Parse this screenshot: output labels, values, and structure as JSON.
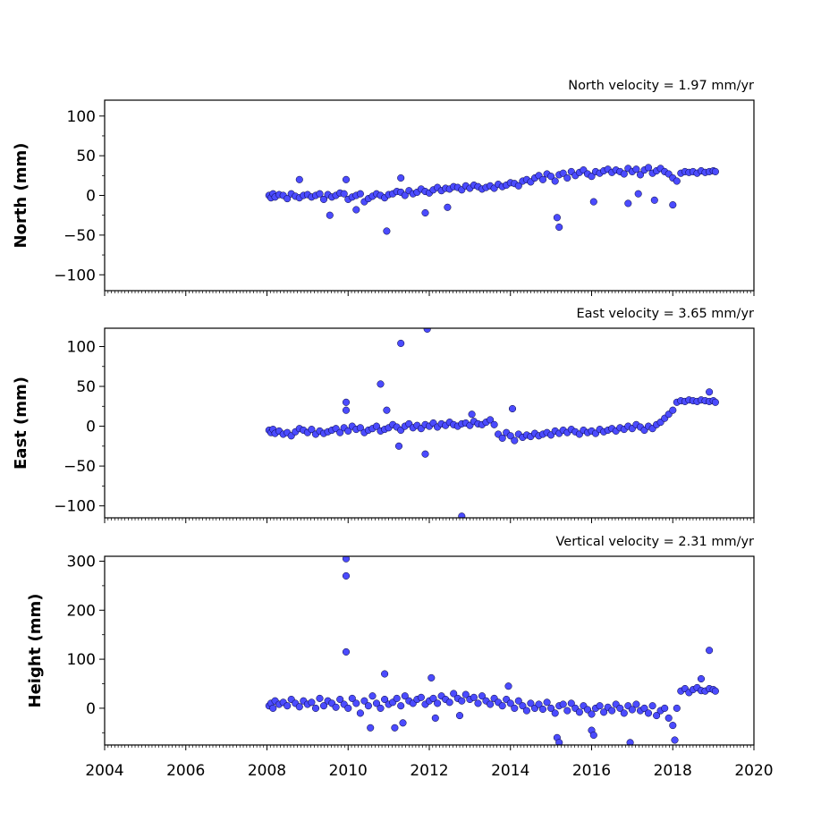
{
  "x_ticks": [
    "2004",
    "2006",
    "2008",
    "2010",
    "2012",
    "2014",
    "2016",
    "2018",
    "2020"
  ],
  "marker_fill": "#4b4bff",
  "marker_edge": "#000033",
  "chart_data": [
    {
      "type": "scatter",
      "title": "North velocity = 1.97 mm/yr",
      "ylabel": "North (mm)",
      "xlabel": "",
      "xlim": [
        2004,
        2020
      ],
      "ylim": [
        -120,
        120
      ],
      "yticks": [
        "100",
        "50",
        "0",
        "−50",
        "−100"
      ],
      "ytick_values": [
        100,
        50,
        0,
        -50,
        -100
      ],
      "grid": false,
      "series": [
        {
          "x": [
            2008.05,
            2008.1,
            2008.15,
            2008.2,
            2008.3,
            2008.4,
            2008.5,
            2008.6,
            2008.7,
            2008.8,
            2008.9,
            2009.0,
            2009.1,
            2009.2,
            2009.3,
            2009.4,
            2009.5,
            2009.6,
            2009.7,
            2009.8,
            2009.9,
            2010.0,
            2010.1,
            2010.2,
            2010.3,
            2010.4,
            2010.5,
            2010.6,
            2010.7,
            2010.8,
            2010.9,
            2011.0,
            2011.1,
            2011.2,
            2011.3,
            2011.4,
            2011.5,
            2011.6,
            2011.7,
            2011.8,
            2011.9,
            2012.0,
            2012.1,
            2012.2,
            2012.3,
            2012.4,
            2012.5,
            2012.6,
            2012.7,
            2012.8,
            2012.9,
            2013.0,
            2013.1,
            2013.2,
            2013.3,
            2013.4,
            2013.5,
            2013.6,
            2013.7,
            2013.8,
            2013.9,
            2014.0,
            2014.1,
            2014.2,
            2014.3,
            2014.4,
            2014.5,
            2014.6,
            2014.7,
            2014.8,
            2014.9,
            2015.0,
            2015.1,
            2015.2,
            2015.3,
            2015.4,
            2015.5,
            2015.6,
            2015.7,
            2015.8,
            2015.9,
            2016.0,
            2016.1,
            2016.2,
            2016.3,
            2016.4,
            2016.5,
            2016.6,
            2016.7,
            2016.8,
            2016.9,
            2017.0,
            2017.1,
            2017.2,
            2017.3,
            2017.4,
            2017.5,
            2017.6,
            2017.7,
            2017.8,
            2017.9,
            2018.0,
            2018.1,
            2018.2,
            2018.3,
            2018.4,
            2018.5,
            2018.6,
            2018.7,
            2018.8,
            2018.9,
            2019.0,
            2019.05,
            2008.8,
            2009.55,
            2009.95,
            2010.2,
            2010.95,
            2011.3,
            2011.9,
            2012.45,
            2015.15,
            2015.2,
            2016.05,
            2016.9,
            2017.15,
            2017.55,
            2018.0
          ],
          "y": [
            0,
            -3,
            2,
            -2,
            1,
            0,
            -4,
            2,
            -1,
            -3,
            0,
            1,
            -2,
            0,
            2,
            -5,
            1,
            -2,
            0,
            3,
            2,
            -5,
            -2,
            0,
            2,
            -8,
            -4,
            -1,
            2,
            0,
            -3,
            1,
            2,
            5,
            4,
            0,
            6,
            2,
            4,
            8,
            5,
            3,
            7,
            10,
            6,
            9,
            8,
            11,
            10,
            7,
            12,
            9,
            13,
            11,
            8,
            10,
            12,
            9,
            14,
            11,
            13,
            16,
            15,
            12,
            18,
            20,
            17,
            22,
            25,
            20,
            27,
            24,
            18,
            26,
            28,
            22,
            30,
            25,
            29,
            32,
            27,
            24,
            30,
            28,
            31,
            33,
            29,
            32,
            30,
            27,
            34,
            30,
            33,
            26,
            32,
            35,
            28,
            31,
            34,
            30,
            27,
            22,
            18,
            28,
            30,
            29,
            30,
            28,
            31,
            29,
            30,
            31,
            30,
            20,
            -25,
            20,
            -18,
            -45,
            22,
            -22,
            -15,
            -28,
            -40,
            -8,
            -10,
            2,
            -6,
            -12
          ]
        }
      ]
    },
    {
      "type": "scatter",
      "title": "East velocity = 3.65 mm/yr",
      "ylabel": "East (mm)",
      "xlabel": "",
      "xlim": [
        2004,
        2020
      ],
      "ylim": [
        -115,
        123
      ],
      "yticks": [
        "100",
        "50",
        "0",
        "−50",
        "−100"
      ],
      "ytick_values": [
        100,
        50,
        0,
        -50,
        -100
      ],
      "grid": false,
      "series": [
        {
          "x": [
            2008.05,
            2008.1,
            2008.15,
            2008.2,
            2008.3,
            2008.4,
            2008.5,
            2008.6,
            2008.7,
            2008.8,
            2008.9,
            2009.0,
            2009.1,
            2009.2,
            2009.3,
            2009.4,
            2009.5,
            2009.6,
            2009.7,
            2009.8,
            2009.9,
            2010.0,
            2010.1,
            2010.2,
            2010.3,
            2010.4,
            2010.5,
            2010.6,
            2010.7,
            2010.8,
            2010.9,
            2011.0,
            2011.1,
            2011.2,
            2011.3,
            2011.4,
            2011.5,
            2011.6,
            2011.7,
            2011.8,
            2011.9,
            2012.0,
            2012.1,
            2012.2,
            2012.3,
            2012.4,
            2012.5,
            2012.6,
            2012.7,
            2012.8,
            2012.9,
            2013.0,
            2013.1,
            2013.2,
            2013.3,
            2013.4,
            2013.5,
            2013.6,
            2013.7,
            2013.8,
            2013.9,
            2014.0,
            2014.1,
            2014.2,
            2014.3,
            2014.4,
            2014.5,
            2014.6,
            2014.7,
            2014.8,
            2014.9,
            2015.0,
            2015.1,
            2015.2,
            2015.3,
            2015.4,
            2015.5,
            2015.6,
            2015.7,
            2015.8,
            2015.9,
            2016.0,
            2016.1,
            2016.2,
            2016.3,
            2016.4,
            2016.5,
            2016.6,
            2016.7,
            2016.8,
            2016.9,
            2017.0,
            2017.1,
            2017.2,
            2017.3,
            2017.4,
            2017.5,
            2017.6,
            2017.7,
            2017.8,
            2017.9,
            2018.0,
            2018.1,
            2018.2,
            2018.3,
            2018.4,
            2018.5,
            2018.6,
            2018.7,
            2018.8,
            2018.9,
            2019.0,
            2019.05,
            2009.95,
            2009.95,
            2010.8,
            2010.95,
            2011.3,
            2011.9,
            2011.95,
            2012.8,
            2013.05,
            2014.05,
            2018.9,
            2011.25
          ],
          "y": [
            -5,
            -8,
            -4,
            -9,
            -6,
            -10,
            -8,
            -12,
            -7,
            -3,
            -5,
            -8,
            -4,
            -10,
            -6,
            -9,
            -7,
            -5,
            -3,
            -8,
            -2,
            -6,
            0,
            -4,
            -2,
            -8,
            -5,
            -3,
            0,
            -6,
            -4,
            -2,
            2,
            -1,
            -5,
            0,
            3,
            -2,
            1,
            -3,
            2,
            0,
            4,
            -1,
            3,
            1,
            5,
            2,
            0,
            3,
            4,
            1,
            6,
            3,
            2,
            5,
            8,
            2,
            -10,
            -15,
            -8,
            -12,
            -18,
            -10,
            -14,
            -11,
            -13,
            -9,
            -12,
            -10,
            -8,
            -11,
            -6,
            -9,
            -5,
            -8,
            -4,
            -7,
            -10,
            -5,
            -8,
            -6,
            -9,
            -4,
            -7,
            -5,
            -3,
            -6,
            -2,
            -4,
            0,
            -3,
            2,
            -1,
            -5,
            0,
            -3,
            2,
            5,
            10,
            15,
            20,
            30,
            32,
            31,
            33,
            32,
            31,
            33,
            32,
            31,
            32,
            30,
            30,
            20,
            53,
            20,
            104,
            -35,
            122,
            -113,
            15,
            22,
            43,
            -25
          ]
        }
      ]
    },
    {
      "type": "scatter",
      "title": "Vertical velocity = 2.31 mm/yr",
      "ylabel": "Height (mm)",
      "xlabel": "",
      "xlim": [
        2004,
        2020
      ],
      "ylim": [
        -75,
        310
      ],
      "yticks": [
        "300",
        "200",
        "100",
        "0"
      ],
      "ytick_values": [
        300,
        200,
        100,
        0
      ],
      "grid": false,
      "series": [
        {
          "x": [
            2008.05,
            2008.1,
            2008.15,
            2008.2,
            2008.3,
            2008.4,
            2008.5,
            2008.6,
            2008.7,
            2008.8,
            2008.9,
            2009.0,
            2009.1,
            2009.2,
            2009.3,
            2009.4,
            2009.5,
            2009.6,
            2009.7,
            2009.8,
            2009.9,
            2010.0,
            2010.1,
            2010.2,
            2010.3,
            2010.4,
            2010.5,
            2010.6,
            2010.7,
            2010.8,
            2010.9,
            2011.0,
            2011.1,
            2011.2,
            2011.3,
            2011.4,
            2011.5,
            2011.6,
            2011.7,
            2011.8,
            2011.9,
            2012.0,
            2012.1,
            2012.2,
            2012.3,
            2012.4,
            2012.5,
            2012.6,
            2012.7,
            2012.8,
            2012.9,
            2013.0,
            2013.1,
            2013.2,
            2013.3,
            2013.4,
            2013.5,
            2013.6,
            2013.7,
            2013.8,
            2013.9,
            2014.0,
            2014.1,
            2014.2,
            2014.3,
            2014.4,
            2014.5,
            2014.6,
            2014.7,
            2014.8,
            2014.9,
            2015.0,
            2015.1,
            2015.2,
            2015.3,
            2015.4,
            2015.5,
            2015.6,
            2015.7,
            2015.8,
            2015.9,
            2016.0,
            2016.1,
            2016.2,
            2016.3,
            2016.4,
            2016.5,
            2016.6,
            2016.7,
            2016.8,
            2016.9,
            2017.0,
            2017.1,
            2017.2,
            2017.3,
            2017.4,
            2017.5,
            2017.6,
            2017.7,
            2017.8,
            2017.9,
            2018.0,
            2018.1,
            2018.2,
            2018.3,
            2018.4,
            2018.5,
            2018.6,
            2018.7,
            2018.8,
            2018.9,
            2019.0,
            2019.05,
            2009.95,
            2009.95,
            2009.95,
            2010.9,
            2011.15,
            2011.35,
            2012.05,
            2012.15,
            2012.75,
            2013.95,
            2015.15,
            2015.2,
            2016.0,
            2016.05,
            2016.95,
            2018.05,
            2018.9,
            2010.55,
            2018.7
          ],
          "y": [
            5,
            10,
            0,
            15,
            8,
            12,
            5,
            18,
            10,
            3,
            15,
            8,
            12,
            0,
            20,
            5,
            15,
            10,
            2,
            18,
            8,
            0,
            20,
            10,
            -10,
            15,
            5,
            25,
            10,
            0,
            18,
            8,
            12,
            20,
            5,
            25,
            15,
            10,
            18,
            22,
            8,
            15,
            20,
            10,
            25,
            18,
            12,
            30,
            20,
            15,
            28,
            18,
            22,
            10,
            25,
            15,
            8,
            20,
            12,
            5,
            18,
            10,
            0,
            15,
            5,
            -5,
            10,
            0,
            8,
            -2,
            12,
            0,
            -10,
            5,
            8,
            -5,
            10,
            0,
            -8,
            5,
            -3,
            -12,
            0,
            5,
            -8,
            2,
            -5,
            8,
            0,
            -10,
            5,
            -3,
            8,
            -5,
            0,
            -10,
            5,
            -15,
            -5,
            0,
            -20,
            -35,
            0,
            35,
            40,
            32,
            38,
            42,
            36,
            35,
            40,
            38,
            35,
            115,
            270,
            305,
            70,
            -40,
            -30,
            62,
            -20,
            -15,
            45,
            -60,
            -70,
            -45,
            -55,
            -70,
            -65,
            118,
            -40,
            60
          ]
        }
      ]
    }
  ]
}
